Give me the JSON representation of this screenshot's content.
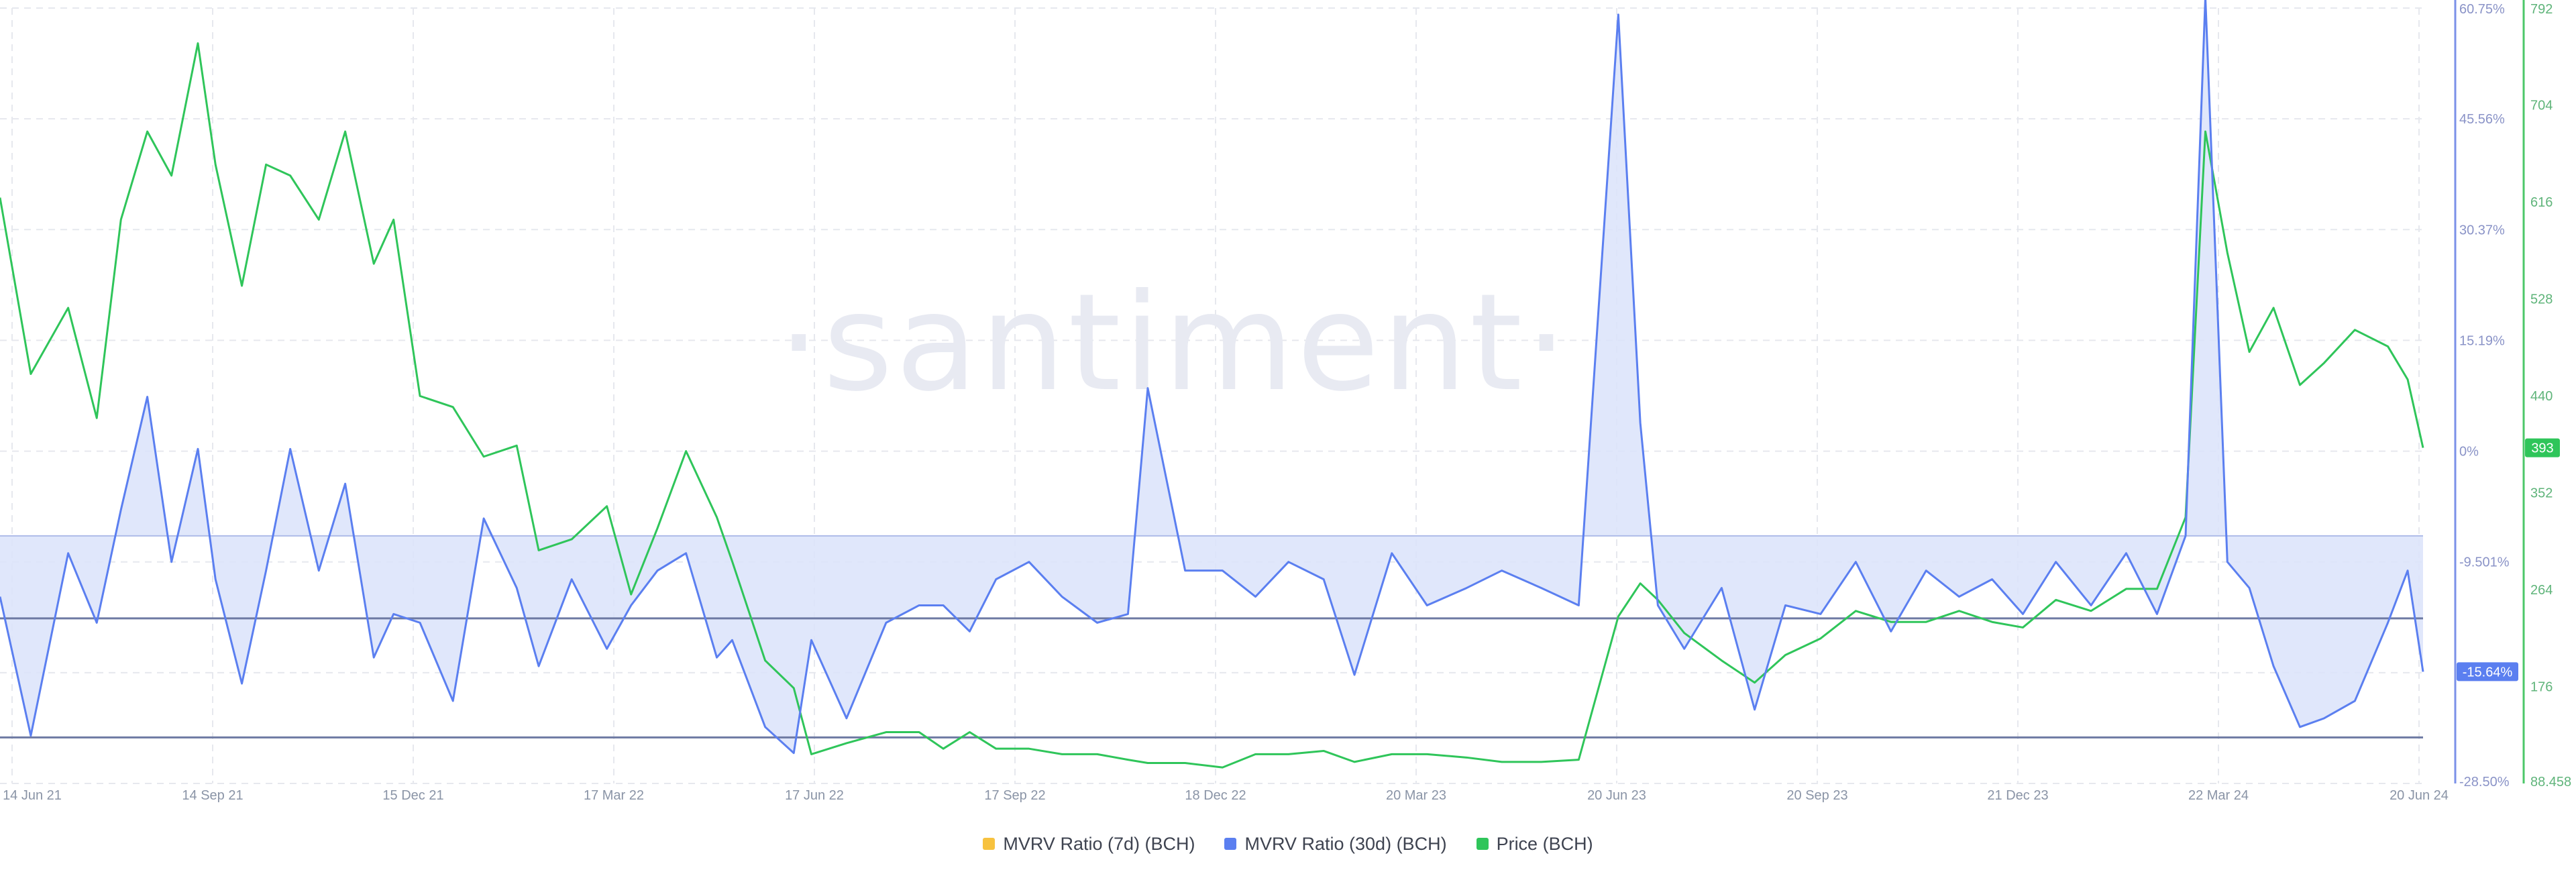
{
  "watermark": "·santiment·",
  "legend": {
    "items": [
      {
        "label": "MVRV Ratio (7d) (BCH)",
        "color": "#f7c23f"
      },
      {
        "label": "MVRV Ratio (30d) (BCH)",
        "color": "#5b7ff0"
      },
      {
        "label": "Price (BCH)",
        "color": "#2fc55a"
      }
    ]
  },
  "colors": {
    "mvrv30": "#5b7ff0",
    "mvrv_fill": "#dbe3fa",
    "price": "#2fc55a",
    "price_axis": "#4cc769",
    "mvrv_axis": "#7b91e8",
    "grid": "#e6e8ee",
    "hline": "#6e7aa3"
  },
  "current": {
    "mvrv30_label": "-15.64%",
    "price_label": "393"
  },
  "chart_data": {
    "type": "line",
    "x_tick_labels": [
      "14 Jun 21",
      "14 Sep 21",
      "15 Dec 21",
      "17 Mar 22",
      "17 Jun 22",
      "17 Sep 22",
      "18 Dec 22",
      "20 Mar 23",
      "20 Jun 23",
      "20 Sep 23",
      "21 Dec 23",
      "22 Mar 24",
      "20 Jun 24"
    ],
    "xlim": [
      "2021-06-14",
      "2024-06-20"
    ],
    "y_left": {
      "label": "MVRV Ratio (30d) (BCH)",
      "unit": "%",
      "ticks": [
        "60.75%",
        "45.56%",
        "30.37%",
        "15.19%",
        "0%",
        "-9.501%",
        "-19.00%",
        "-28.50%"
      ],
      "ylim": [
        -28.5,
        60.75
      ]
    },
    "y_right": {
      "label": "Price (BCH)",
      "ticks": [
        "792",
        "704",
        "616",
        "528",
        "440",
        "352",
        "264",
        "176",
        "88.458"
      ],
      "ylim": [
        88.458,
        792
      ]
    },
    "reference_lines": [
      {
        "axis": "mvrv",
        "value": 0
      },
      {
        "axis": "mvrv",
        "value": -9.5
      },
      {
        "axis": "mvrv",
        "value": -23.2
      }
    ],
    "series": [
      {
        "name": "MVRV Ratio (7d) (BCH)",
        "axis": "left",
        "x": [],
        "values": []
      },
      {
        "name": "MVRV Ratio (30d) (BCH)",
        "axis": "left",
        "x": [
          "2021-06-14",
          "2021-06-28",
          "2021-07-15",
          "2021-07-28",
          "2021-08-08",
          "2021-08-20",
          "2021-08-31",
          "2021-09-12",
          "2021-09-20",
          "2021-10-02",
          "2021-10-13",
          "2021-10-24",
          "2021-11-06",
          "2021-11-18",
          "2021-12-01",
          "2021-12-10",
          "2021-12-22",
          "2022-01-06",
          "2022-01-20",
          "2022-02-04",
          "2022-02-14",
          "2022-03-01",
          "2022-03-17",
          "2022-03-28",
          "2022-04-09",
          "2022-04-22",
          "2022-05-06",
          "2022-05-13",
          "2022-05-28",
          "2022-06-10",
          "2022-06-18",
          "2022-07-04",
          "2022-07-22",
          "2022-08-06",
          "2022-08-17",
          "2022-08-29",
          "2022-09-10",
          "2022-09-25",
          "2022-10-10",
          "2022-10-26",
          "2022-11-09",
          "2022-11-18",
          "2022-12-05",
          "2022-12-22",
          "2023-01-06",
          "2023-01-21",
          "2023-02-06",
          "2023-02-20",
          "2023-03-09",
          "2023-03-25",
          "2023-04-12",
          "2023-04-28",
          "2023-05-16",
          "2023-06-02",
          "2023-06-20",
          "2023-06-30",
          "2023-07-08",
          "2023-07-20",
          "2023-08-06",
          "2023-08-21",
          "2023-09-04",
          "2023-09-20",
          "2023-10-06",
          "2023-10-22",
          "2023-11-07",
          "2023-11-22",
          "2023-12-07",
          "2023-12-21",
          "2024-01-05",
          "2024-01-21",
          "2024-02-06",
          "2024-02-20",
          "2024-03-04",
          "2024-03-13",
          "2024-03-23",
          "2024-04-02",
          "2024-04-13",
          "2024-04-25",
          "2024-05-06",
          "2024-05-20",
          "2024-06-04",
          "2024-06-13",
          "2024-06-20"
        ],
        "values": [
          -7,
          -23,
          -2,
          -10,
          3,
          16,
          -3,
          10,
          -5,
          -17,
          -4,
          10,
          -4,
          6,
          -14,
          -9,
          -10,
          -19,
          2,
          -6,
          -15,
          -5,
          -13,
          -8,
          -4,
          -2,
          -14,
          -12,
          -22,
          -25,
          -12,
          -21,
          -10,
          -8,
          -8,
          -11,
          -5,
          -3,
          -7,
          -10,
          -9,
          17,
          -4,
          -4,
          -7,
          -3,
          -5,
          -16,
          -2,
          -8,
          -6,
          -4,
          -6,
          -8,
          60,
          13,
          -8,
          -13,
          -6,
          -20,
          -8,
          -9,
          -3,
          -11,
          -4,
          -7,
          -5,
          -9,
          -3,
          -8,
          -2,
          -9,
          0,
          62,
          -3,
          -6,
          -15,
          -22,
          -21,
          -19,
          -10,
          -4,
          -15.64
        ]
      },
      {
        "name": "Price (BCH)",
        "axis": "right",
        "x": [
          "2021-06-14",
          "2021-06-28",
          "2021-07-15",
          "2021-07-28",
          "2021-08-08",
          "2021-08-20",
          "2021-08-31",
          "2021-09-12",
          "2021-09-20",
          "2021-10-02",
          "2021-10-13",
          "2021-10-24",
          "2021-11-06",
          "2021-11-18",
          "2021-12-01",
          "2021-12-10",
          "2021-12-22",
          "2022-01-06",
          "2022-01-20",
          "2022-02-04",
          "2022-02-14",
          "2022-03-01",
          "2022-03-17",
          "2022-03-28",
          "2022-04-09",
          "2022-04-22",
          "2022-05-06",
          "2022-05-13",
          "2022-05-28",
          "2022-06-10",
          "2022-06-18",
          "2022-07-04",
          "2022-07-22",
          "2022-08-06",
          "2022-08-17",
          "2022-08-29",
          "2022-09-10",
          "2022-09-25",
          "2022-10-10",
          "2022-10-26",
          "2022-11-09",
          "2022-11-18",
          "2022-12-05",
          "2022-12-22",
          "2023-01-06",
          "2023-01-21",
          "2023-02-06",
          "2023-02-20",
          "2023-03-09",
          "2023-03-25",
          "2023-04-12",
          "2023-04-28",
          "2023-05-16",
          "2023-06-02",
          "2023-06-20",
          "2023-06-30",
          "2023-07-08",
          "2023-07-20",
          "2023-08-06",
          "2023-08-21",
          "2023-09-04",
          "2023-09-20",
          "2023-10-06",
          "2023-10-22",
          "2023-11-07",
          "2023-11-22",
          "2023-12-07",
          "2023-12-21",
          "2024-01-05",
          "2024-01-21",
          "2024-02-06",
          "2024-02-20",
          "2024-03-04",
          "2024-03-13",
          "2024-03-23",
          "2024-04-02",
          "2024-04-13",
          "2024-04-25",
          "2024-05-06",
          "2024-05-20",
          "2024-06-04",
          "2024-06-13",
          "2024-06-20"
        ],
        "values": [
          620,
          460,
          520,
          420,
          600,
          680,
          640,
          760,
          650,
          540,
          650,
          640,
          600,
          680,
          560,
          600,
          440,
          430,
          385,
          395,
          300,
          310,
          340,
          260,
          320,
          390,
          330,
          290,
          200,
          175,
          115,
          125,
          135,
          135,
          120,
          135,
          120,
          120,
          115,
          115,
          110,
          107,
          107,
          103,
          115,
          115,
          118,
          108,
          115,
          115,
          112,
          108,
          108,
          110,
          240,
          270,
          255,
          225,
          200,
          180,
          205,
          220,
          245,
          235,
          235,
          245,
          235,
          230,
          255,
          245,
          265,
          265,
          330,
          680,
          570,
          480,
          520,
          450,
          470,
          500,
          485,
          455,
          393
        ]
      }
    ]
  }
}
